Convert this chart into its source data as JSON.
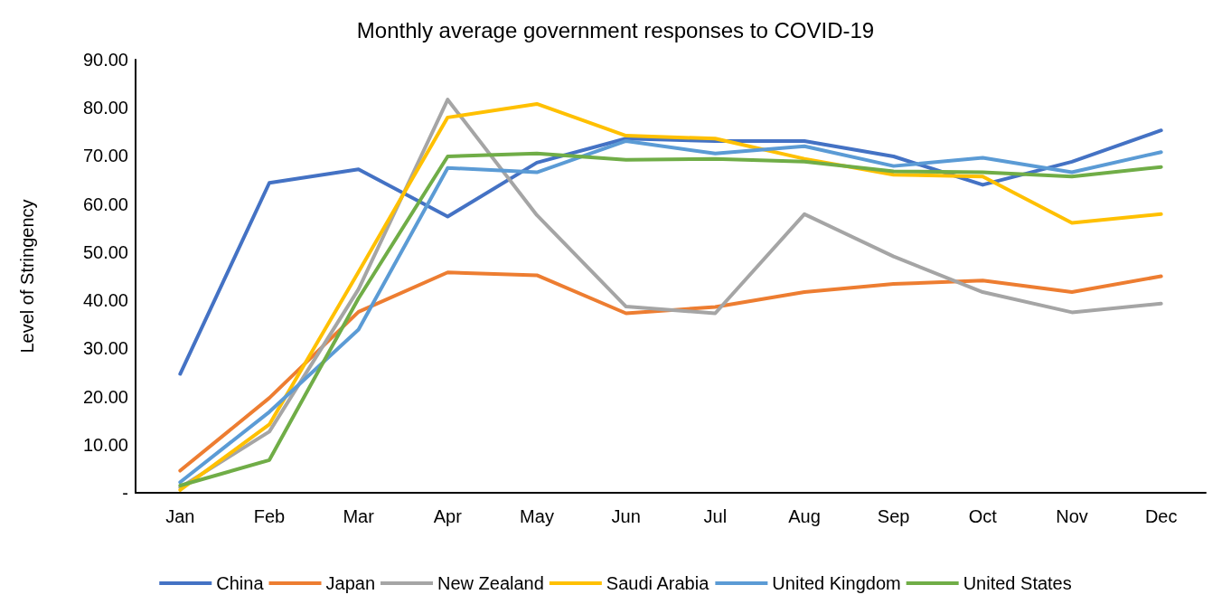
{
  "chart_data": {
    "type": "line",
    "title": "Monthly average government responses to COVID-19",
    "ylabel": "Level of Stringency",
    "categories": [
      "Jan",
      "Feb",
      "Mar",
      "Apr",
      "May",
      "Jun",
      "Jul",
      "Aug",
      "Sep",
      "Oct",
      "Nov",
      "Dec"
    ],
    "series": [
      {
        "name": "China",
        "color": "#4472c4",
        "values": [
          24.7,
          64.4,
          67.2,
          57.4,
          68.6,
          73.6,
          73.1,
          73.1,
          69.9,
          64.0,
          68.8,
          75.3
        ]
      },
      {
        "name": "Japan",
        "color": "#ed7d31",
        "values": [
          4.6,
          19.7,
          37.6,
          45.8,
          45.2,
          37.3,
          38.6,
          41.7,
          43.4,
          44.1,
          41.7,
          45.0
        ]
      },
      {
        "name": "New Zealand",
        "color": "#a5a5a5",
        "values": [
          1.1,
          12.7,
          42.3,
          81.7,
          57.7,
          38.7,
          37.3,
          57.9,
          49.1,
          41.7,
          37.5,
          39.3
        ]
      },
      {
        "name": "Saudi Arabia",
        "color": "#ffc000",
        "values": [
          0.6,
          14.2,
          45.9,
          78.0,
          80.8,
          74.2,
          73.6,
          69.4,
          66.1,
          65.7,
          56.1,
          57.9
        ]
      },
      {
        "name": "United Kingdom",
        "color": "#5b9bd5",
        "values": [
          2.2,
          16.8,
          33.9,
          67.5,
          66.6,
          73.1,
          70.5,
          72.0,
          67.9,
          69.6,
          66.6,
          70.8
        ]
      },
      {
        "name": "United States",
        "color": "#70ad47",
        "values": [
          1.5,
          6.8,
          40.4,
          69.9,
          70.5,
          69.2,
          69.4,
          68.8,
          66.8,
          66.6,
          65.7,
          67.7
        ]
      }
    ],
    "ylim": [
      0,
      90
    ],
    "yticks": [
      {
        "value": 0,
        "label": "-"
      },
      {
        "value": 10,
        "label": "10.00"
      },
      {
        "value": 20,
        "label": "20.00"
      },
      {
        "value": 30,
        "label": "30.00"
      },
      {
        "value": 40,
        "label": "40.00"
      },
      {
        "value": 50,
        "label": "50.00"
      },
      {
        "value": 60,
        "label": "60.00"
      },
      {
        "value": 70,
        "label": "70.00"
      },
      {
        "value": 80,
        "label": "80.00"
      },
      {
        "value": 90,
        "label": "90.00"
      }
    ],
    "grid": false,
    "legend": "bottom",
    "marker": "none",
    "line_style": "solid"
  }
}
